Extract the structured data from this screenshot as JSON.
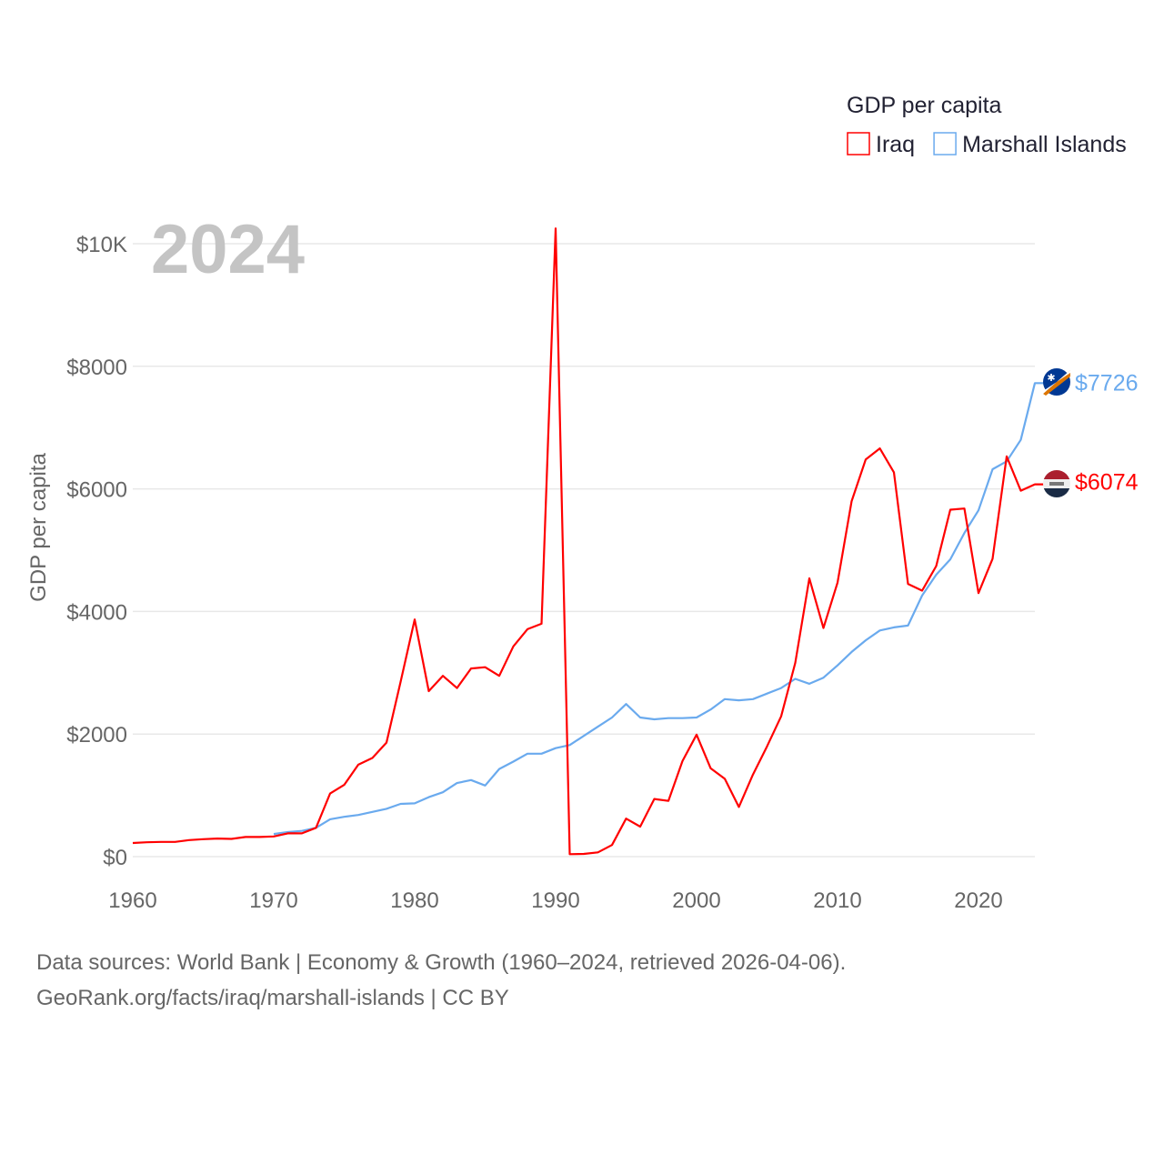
{
  "chart_data": {
    "type": "line",
    "title": "2024",
    "ylabel": "GDP per capita",
    "xlabel": "",
    "legend_title": "GDP per capita",
    "legend_placement": "top-right",
    "xlim": [
      1960,
      2024
    ],
    "ylim": [
      0,
      10000
    ],
    "x_ticks": [
      1960,
      1970,
      1980,
      1990,
      2000,
      2010,
      2020
    ],
    "x_tick_labels": [
      "1960",
      "1970",
      "1980",
      "1990",
      "2000",
      "2010",
      "2020"
    ],
    "y_ticks": [
      0,
      2000,
      4000,
      6000,
      8000,
      10000
    ],
    "y_tick_labels": [
      "$0",
      "$2000",
      "$4000",
      "$6000",
      "$8000",
      "$10K"
    ],
    "grid": true,
    "series": [
      {
        "name": "Iraq",
        "color": "#ff0000",
        "end_label": "$6074",
        "start_year": 1960,
        "values": [
          223,
          235,
          240,
          240,
          270,
          285,
          295,
          290,
          320,
          320,
          330,
          380,
          380,
          470,
          1030,
          1170,
          1500,
          1610,
          1860,
          2850,
          3870,
          2700,
          2950,
          2750,
          3070,
          3090,
          2950,
          3430,
          3710,
          3800,
          10250,
          40,
          45,
          70,
          190,
          620,
          490,
          940,
          910,
          1560,
          1990,
          1440,
          1270,
          810,
          1340,
          1800,
          2290,
          3160,
          4540,
          3730,
          4470,
          5800,
          6480,
          6660,
          6270,
          4450,
          4340,
          4740,
          5660,
          5680,
          4300,
          4860,
          6530,
          5970,
          6074
        ]
      },
      {
        "name": "Marshall Islands",
        "color": "#6aaaee",
        "end_label": "$7726",
        "start_year": 1970,
        "values": [
          370,
          400,
          420,
          470,
          610,
          650,
          680,
          730,
          780,
          860,
          870,
          970,
          1050,
          1200,
          1250,
          1160,
          1430,
          1550,
          1680,
          1680,
          1770,
          1820,
          1970,
          2120,
          2270,
          2490,
          2270,
          2240,
          2260,
          2260,
          2270,
          2400,
          2570,
          2550,
          2570,
          2660,
          2750,
          2900,
          2820,
          2920,
          3120,
          3340,
          3530,
          3690,
          3740,
          3770,
          4260,
          4600,
          4850,
          5280,
          5650,
          6320,
          6450,
          6800,
          7726
        ]
      }
    ]
  },
  "footer": {
    "line1": "Data sources: World Bank | Economy & Growth (1960–2024, retrieved 2026-04-06).",
    "line2": "GeoRank.org/facts/iraq/marshall-islands | CC BY"
  }
}
